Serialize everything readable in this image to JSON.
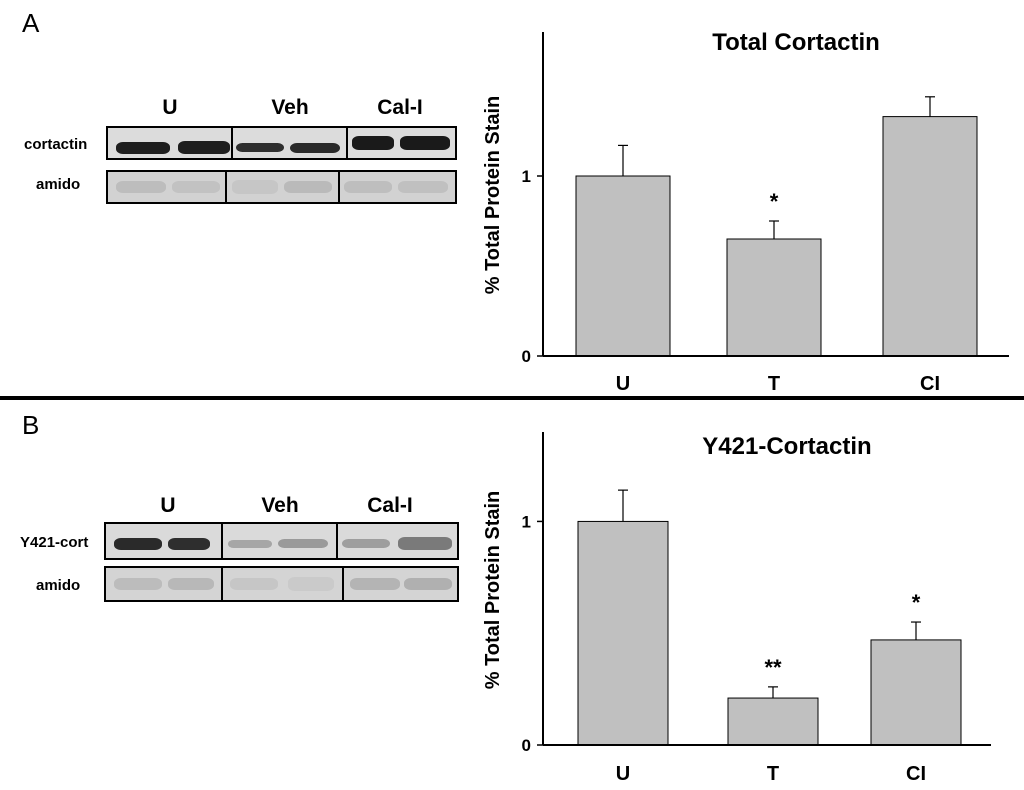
{
  "panels": [
    {
      "letter": "A",
      "blot": {
        "lanes": [
          "U",
          "Veh",
          "Cal-I"
        ],
        "rows": [
          "cortactin",
          "amido"
        ]
      }
    },
    {
      "letter": "B",
      "blot": {
        "lanes": [
          "U",
          "Veh",
          "Cal-I"
        ],
        "rows": [
          "Y421-cort",
          "amido"
        ]
      }
    }
  ],
  "chart_data": [
    {
      "type": "bar",
      "title": "Total Cortactin",
      "ylabel": "% Total Protein Stain",
      "xlabel": "",
      "categories": [
        "U",
        "T",
        "CI"
      ],
      "values": [
        1.0,
        0.65,
        1.33
      ],
      "errors": [
        0.17,
        0.1,
        0.11
      ],
      "annotations": [
        "",
        "*",
        ""
      ],
      "yticks": [
        0,
        1
      ],
      "ylim": [
        0,
        1.8
      ],
      "bar_color": "#c0c0c0"
    },
    {
      "type": "bar",
      "title": "Y421-Cortactin",
      "ylabel": "% Total Protein Stain",
      "xlabel": "",
      "categories": [
        "U",
        "T",
        "CI"
      ],
      "values": [
        1.0,
        0.21,
        0.47
      ],
      "errors": [
        0.14,
        0.05,
        0.08
      ],
      "annotations": [
        "",
        "**",
        "*"
      ],
      "yticks": [
        0,
        1
      ],
      "ylim": [
        0,
        1.4
      ],
      "bar_color": "#c0c0c0"
    }
  ]
}
